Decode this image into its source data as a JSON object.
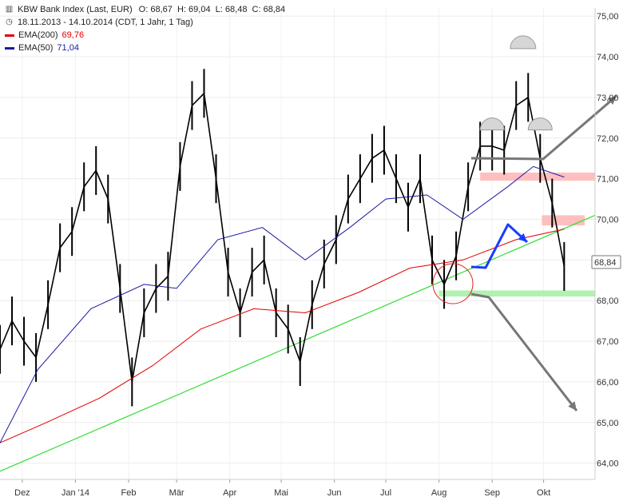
{
  "header": {
    "title": "KBW Bank Index (Last, EUR)",
    "ohlc": "O: 68,67  H: 69,04  L: 68,48  C: 68,84",
    "range": "18.11.2013 - 14.10.2014 (CDT, 1 Jahr, 1 Tag)",
    "ema200_label": "EMA(200)",
    "ema200_value": "69,76",
    "ema50_label": "EMA(50)",
    "ema50_value": "71,04"
  },
  "last_price_label": "68,84",
  "colors": {
    "candle": "#000000",
    "ema200": "#e00000",
    "ema50": "#1a1aa0",
    "trendline": "#33dd33",
    "support_zone": "#a8f0a8",
    "resistance_zone": "#ffb8b8",
    "head_shoulders": "#d6d6d6",
    "arrow_gray": "#777777",
    "arrow_blue": "#1a3cff",
    "circle": "#e02020"
  },
  "chart_data": {
    "type": "line",
    "ylim": [
      63.6,
      75.2
    ],
    "yticks": [
      "64,00",
      "65,00",
      "66,00",
      "67,00",
      "68,00",
      "69,00",
      "70,00",
      "71,00",
      "72,00",
      "73,00",
      "74,00",
      "75,00"
    ],
    "ytick_values": [
      64,
      65,
      66,
      67,
      68,
      69,
      70,
      71,
      72,
      73,
      74,
      75
    ],
    "xticks": [
      "Dez",
      "Jan '14",
      "Feb",
      "Mär",
      "Apr",
      "Mai",
      "Jun",
      "Jul",
      "Aug",
      "Sep",
      "Okt"
    ],
    "xtick_dates": [
      "2013-12-01",
      "2014-01-01",
      "2014-02-01",
      "2014-03-01",
      "2014-04-01",
      "2014-05-01",
      "2014-06-01",
      "2014-07-01",
      "2014-08-01",
      "2014-09-01",
      "2014-10-01"
    ],
    "xlim": [
      "2013-11-18",
      "2014-10-31"
    ],
    "series": [
      {
        "name": "Close",
        "dates": [
          "2013-11-18",
          "2013-11-25",
          "2013-12-02",
          "2013-12-09",
          "2013-12-16",
          "2013-12-23",
          "2013-12-30",
          "2014-01-06",
          "2014-01-13",
          "2014-01-20",
          "2014-01-27",
          "2014-02-03",
          "2014-02-10",
          "2014-02-17",
          "2014-02-24",
          "2014-03-03",
          "2014-03-10",
          "2014-03-17",
          "2014-03-24",
          "2014-03-31",
          "2014-04-07",
          "2014-04-14",
          "2014-04-21",
          "2014-04-28",
          "2014-05-05",
          "2014-05-12",
          "2014-05-19",
          "2014-05-26",
          "2014-06-02",
          "2014-06-09",
          "2014-06-16",
          "2014-06-23",
          "2014-06-30",
          "2014-07-07",
          "2014-07-14",
          "2014-07-21",
          "2014-07-28",
          "2014-08-04",
          "2014-08-11",
          "2014-08-18",
          "2014-08-25",
          "2014-09-01",
          "2014-09-08",
          "2014-09-15",
          "2014-09-22",
          "2014-09-29",
          "2014-10-06",
          "2014-10-13"
        ],
        "values": [
          66.8,
          67.5,
          67.0,
          66.6,
          67.9,
          69.3,
          69.7,
          70.8,
          71.2,
          70.5,
          68.3,
          66.0,
          67.7,
          68.3,
          68.6,
          71.3,
          72.8,
          73.1,
          71.0,
          68.7,
          67.7,
          68.7,
          69.0,
          67.7,
          67.3,
          66.5,
          67.9,
          68.9,
          69.5,
          70.5,
          71.0,
          71.5,
          71.7,
          71.0,
          70.3,
          71.0,
          69.0,
          68.4,
          69.1,
          70.8,
          71.8,
          71.8,
          71.7,
          72.8,
          73.0,
          71.5,
          70.4,
          68.84
        ]
      },
      {
        "name": "EMA(200)",
        "dates": [
          "2013-11-18",
          "2013-12-15",
          "2014-01-15",
          "2014-02-15",
          "2014-03-15",
          "2014-04-15",
          "2014-05-15",
          "2014-06-15",
          "2014-07-15",
          "2014-08-15",
          "2014-09-15",
          "2014-10-13"
        ],
        "values": [
          64.5,
          65.0,
          65.6,
          66.4,
          67.3,
          67.8,
          67.7,
          68.2,
          68.8,
          69.0,
          69.5,
          69.76
        ]
      },
      {
        "name": "EMA(50)",
        "dates": [
          "2013-11-18",
          "2013-12-10",
          "2014-01-10",
          "2014-02-10",
          "2014-03-01",
          "2014-03-25",
          "2014-04-20",
          "2014-05-15",
          "2014-06-10",
          "2014-07-01",
          "2014-07-25",
          "2014-08-15",
          "2014-09-10",
          "2014-09-25",
          "2014-10-13"
        ],
        "values": [
          64.5,
          66.3,
          67.8,
          68.4,
          68.3,
          69.5,
          69.8,
          69.0,
          69.8,
          70.5,
          70.6,
          70.0,
          70.8,
          71.3,
          71.04
        ]
      }
    ],
    "annotations": {
      "trendline": {
        "from": [
          "2013-11-18",
          63.8
        ],
        "to": [
          "2014-10-31",
          70.1
        ]
      },
      "support_zone": {
        "from": "2014-08-01",
        "to": "2014-10-31",
        "y": [
          68.1,
          68.25
        ]
      },
      "resistance_zone_1": {
        "from": "2014-08-25",
        "to": "2014-10-31",
        "y": [
          70.95,
          71.15
        ]
      },
      "resistance_zone_2": {
        "from": "2014-09-30",
        "to": "2014-10-25",
        "y": [
          69.85,
          70.1
        ]
      },
      "head": {
        "date": "2014-09-19",
        "y": 74.2
      },
      "left_shoulder": {
        "date": "2014-09-01",
        "y": 72.2
      },
      "right_shoulder": {
        "date": "2014-09-29",
        "y": 72.2
      }
    }
  }
}
